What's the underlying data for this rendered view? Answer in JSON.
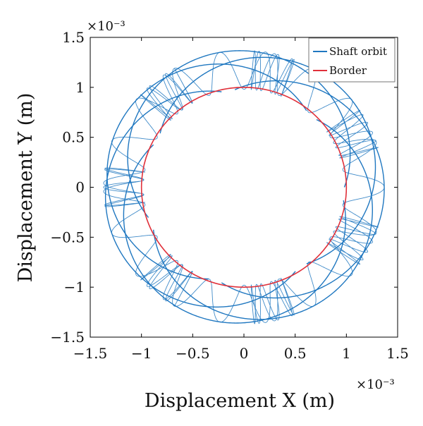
{
  "colors": {
    "orbit": "#1f77c0",
    "border": "#e0303a",
    "axis": "#000000"
  },
  "chart_data": {
    "type": "line",
    "xlabel": "Displacement X (m)",
    "ylabel": "Displacement Y (m)",
    "x_exponent_label": "×10⁻³",
    "y_exponent_label": "×10⁻³",
    "xlim": [
      -1.5,
      1.5
    ],
    "ylim": [
      -1.5,
      1.5
    ],
    "x_ticks": [
      -1.5,
      -1,
      -0.5,
      0,
      0.5,
      1,
      1.5
    ],
    "y_ticks": [
      -1.5,
      -1,
      -0.5,
      0,
      0.5,
      1,
      1.5
    ],
    "x_tick_labels": [
      "−1.5",
      "−1",
      "−0.5",
      "0",
      "0.5",
      "1",
      "1.5"
    ],
    "y_tick_labels": [
      "−1.5",
      "−1",
      "−0.5",
      "0",
      "0.5",
      "1",
      "1.5"
    ],
    "legend_position": "top-right",
    "grid": false,
    "series": [
      {
        "name": "Shaft orbit",
        "kind": "precessing-orbit",
        "inner_radius": 0.98,
        "outer_radius": 1.37,
        "spin_cycles": 60,
        "lobes": 7
      },
      {
        "name": "Border",
        "kind": "circle",
        "radius": 1.0
      }
    ]
  }
}
